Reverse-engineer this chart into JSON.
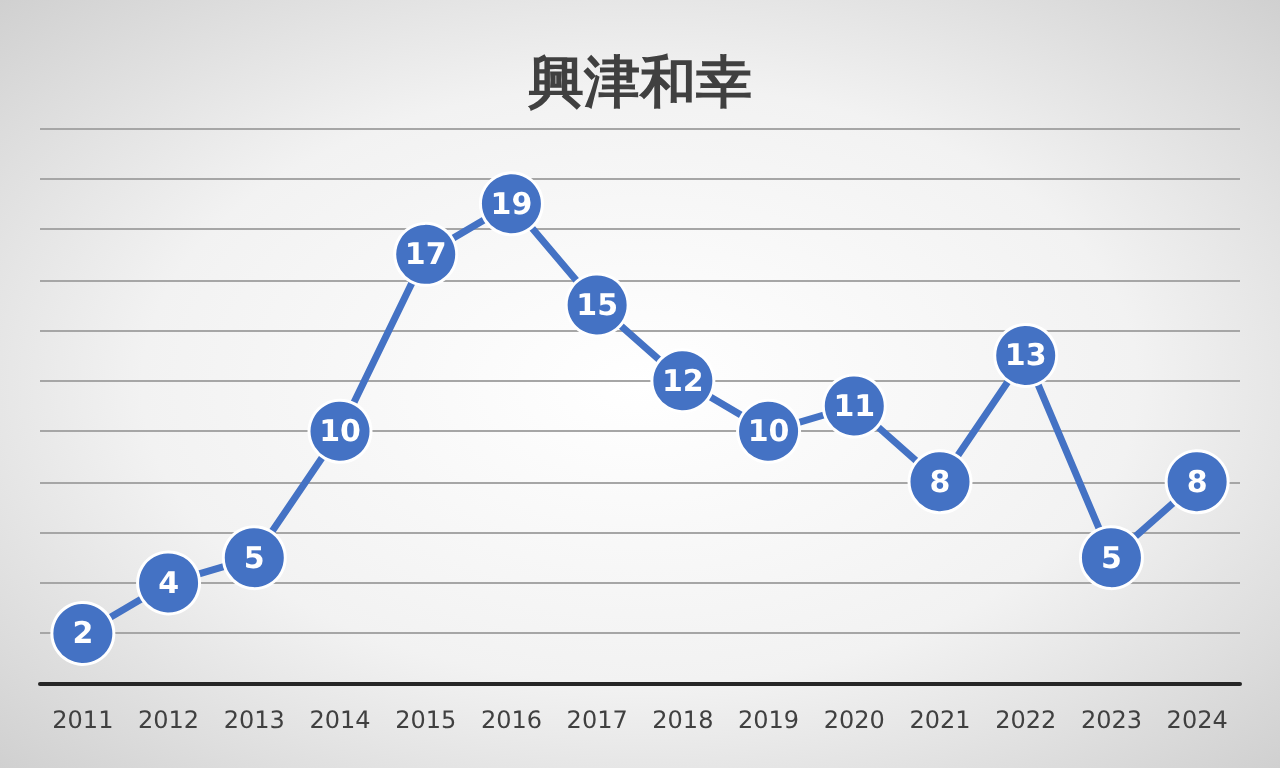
{
  "chart_data": {
    "type": "line",
    "title": "興津和幸",
    "categories": [
      "2011",
      "2012",
      "2013",
      "2014",
      "2015",
      "2016",
      "2017",
      "2018",
      "2019",
      "2020",
      "2021",
      "2022",
      "2023",
      "2024"
    ],
    "series": [
      {
        "color": "#4472c4",
        "values": [
          2,
          4,
          5,
          10,
          17,
          19,
          15,
          12,
          10,
          11,
          8,
          13,
          5,
          8
        ]
      }
    ],
    "ylim": [
      0,
      22
    ],
    "yticks": [
      {
        "value": 0,
        "label": null
      },
      {
        "value": 2,
        "label": null
      },
      {
        "value": 4,
        "label": null
      },
      {
        "value": 6,
        "label": null
      },
      {
        "value": 8,
        "label": null
      },
      {
        "value": 10,
        "label": null
      },
      {
        "value": 12,
        "label": null
      },
      {
        "value": 14,
        "label": null
      },
      {
        "value": 16,
        "label": null
      },
      {
        "value": 18,
        "label": null
      },
      {
        "value": 20,
        "label": null
      },
      {
        "value": 22,
        "label": null
      }
    ],
    "grid": "y",
    "tick_labels": "x",
    "marker": "circle",
    "line_style": "solid",
    "data_labels": true
  }
}
